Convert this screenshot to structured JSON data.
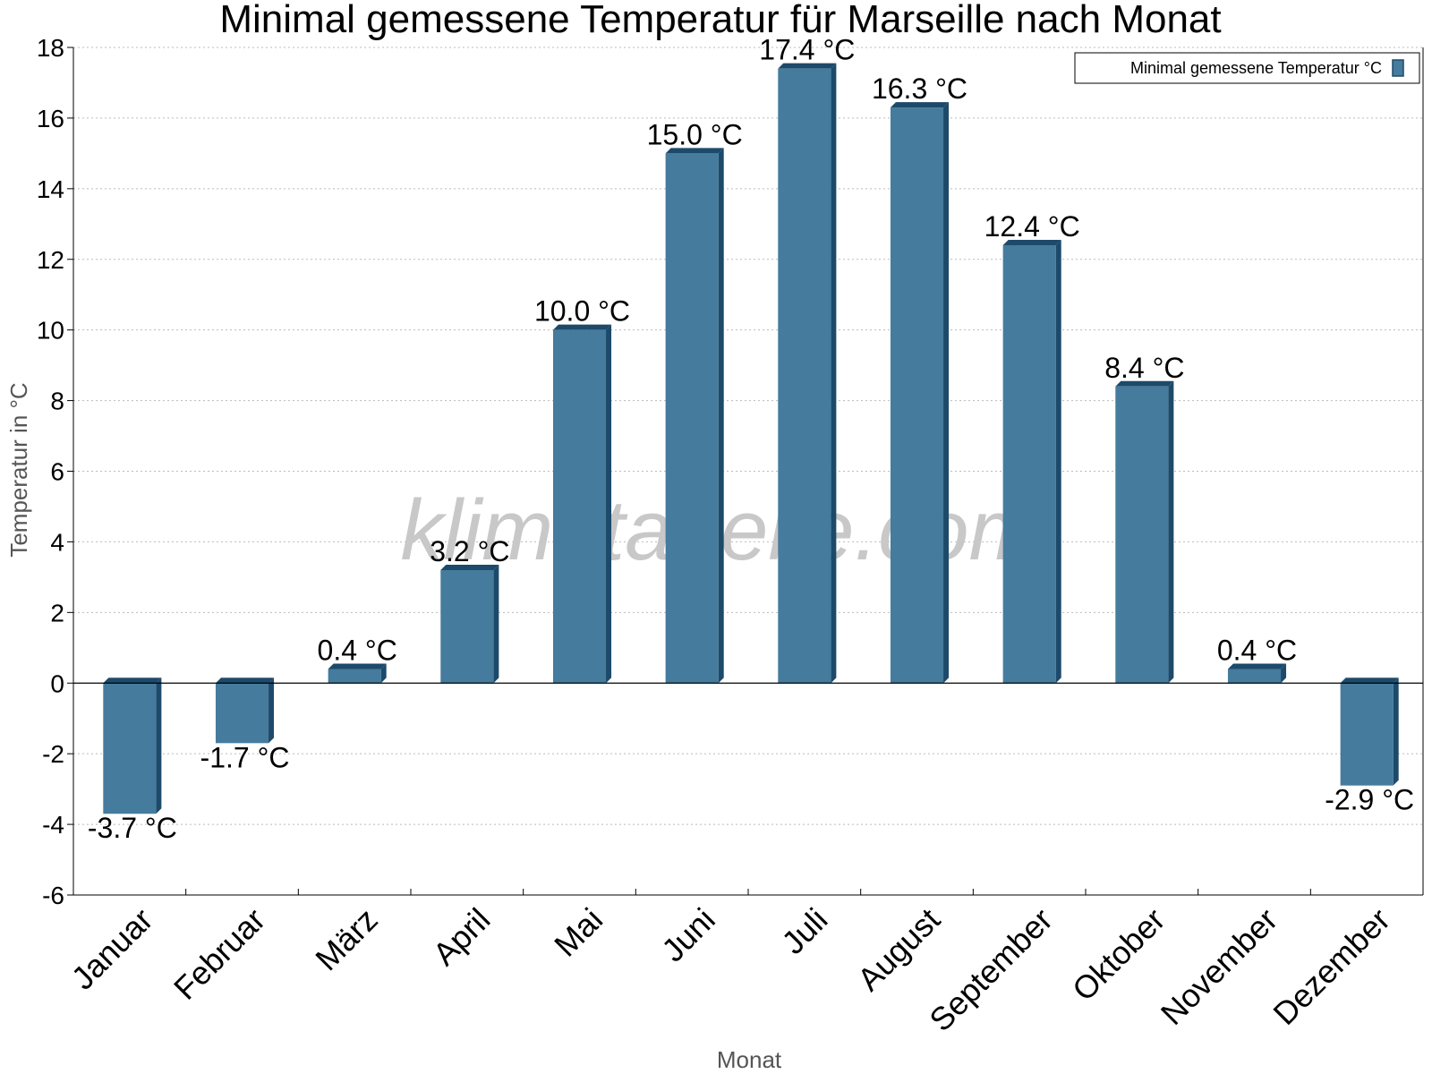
{
  "chart_data": {
    "type": "bar",
    "title": "Minimal gemessene Temperatur für Marseille nach Monat",
    "xlabel": "Monat",
    "ylabel": "Temperatur in °C",
    "categories": [
      "Januar",
      "Februar",
      "März",
      "April",
      "Mai",
      "Juni",
      "Juli",
      "August",
      "September",
      "Oktober",
      "November",
      "Dezember"
    ],
    "series": [
      {
        "name": "Minimal gemessene Temperatur °C",
        "values": [
          -3.7,
          -1.7,
          0.4,
          3.2,
          10.0,
          15.0,
          17.4,
          16.3,
          12.4,
          8.4,
          0.4,
          -2.9
        ]
      }
    ],
    "data_labels": [
      "-3.7 °C",
      "-1.7 °C",
      "0.4 °C",
      "3.2 °C",
      "10.0 °C",
      "15.0 °C",
      "17.4 °C",
      "16.3 °C",
      "12.4 °C",
      "8.4 °C",
      "0.4 °C",
      "-2.9 °C"
    ],
    "yticks": [
      "-6",
      "-4",
      "-2",
      "0",
      "2",
      "4",
      "6",
      "8",
      "10",
      "12",
      "14",
      "16",
      "18"
    ],
    "ylim": [
      -6,
      18
    ],
    "grid": true,
    "legend_position": "top-right",
    "watermark": "klimatabelle.com",
    "colors": {
      "bar": "#457b9d",
      "bar_side": "#1d4a6a",
      "bar_top": "#1d4a6a",
      "grid": "#bbbbbb"
    }
  }
}
